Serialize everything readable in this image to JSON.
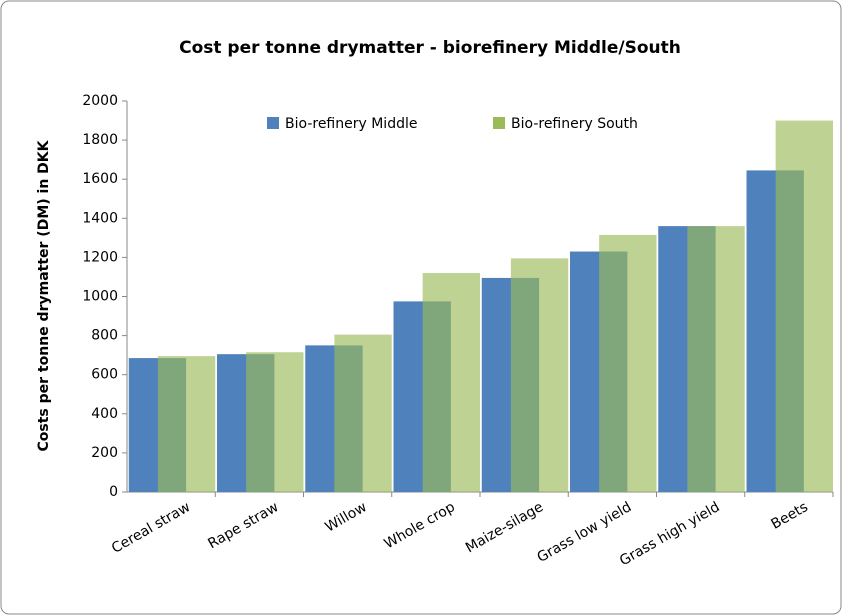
{
  "chart_data": {
    "type": "bar",
    "title": "Cost per tonne drymatter - biorefinery Middle/South",
    "y_label": "Costs per tonne drymatter (DM) in DKK",
    "categories": [
      "Cereal straw",
      "Rape straw",
      "Willow",
      "Whole crop",
      "Maize-silage",
      "Grass low yield",
      "Grass high yield",
      "Beets"
    ],
    "series": [
      {
        "name": "Bio-refinery Middle",
        "color": "#4f81bd",
        "values": [
          685,
          705,
          750,
          975,
          1095,
          1230,
          1360,
          1645
        ]
      },
      {
        "name": "Bio-refinery South",
        "color": "#9bbb59",
        "values": [
          695,
          715,
          805,
          1120,
          1195,
          1315,
          1360,
          1900
        ]
      }
    ],
    "ylim": [
      0,
      2000
    ],
    "yticks": [
      0,
      200,
      400,
      600,
      800,
      1000,
      1200,
      1400,
      1600,
      1800,
      2000
    ],
    "legend": "top"
  }
}
